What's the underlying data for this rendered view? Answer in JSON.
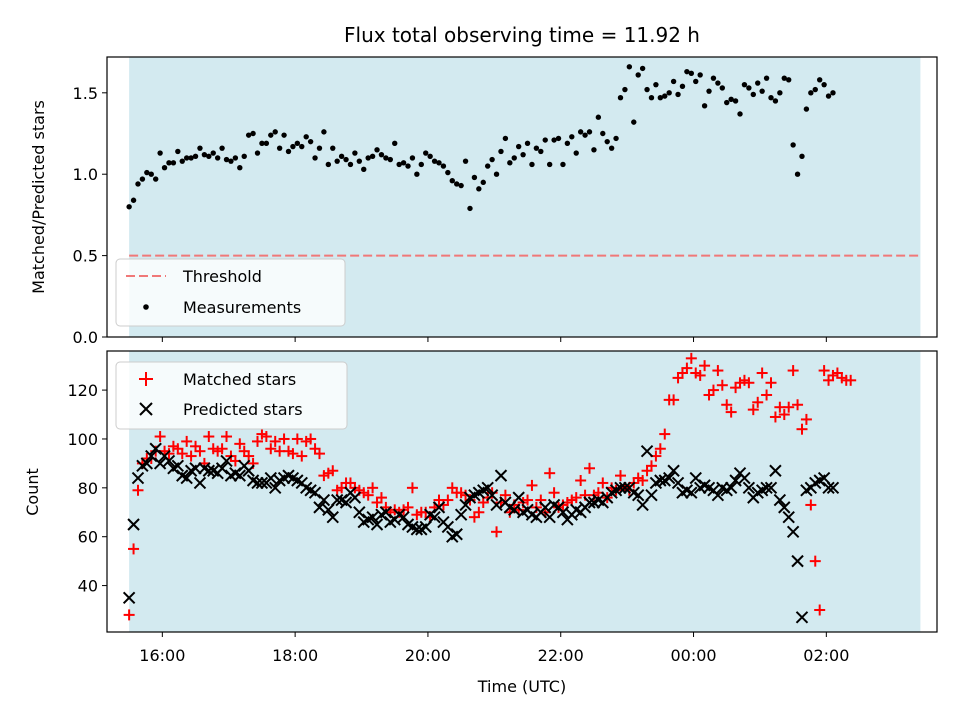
{
  "chart_data": [
    {
      "type": "scatter",
      "title": "Flux total observing time = 11.92 h",
      "xlabel": "",
      "ylabel": "Matched/Predicted stars",
      "ylim": [
        0,
        1.72
      ],
      "xlim": [
        "15:10",
        "03:40"
      ],
      "yticks": [
        0.0,
        0.5,
        1.0,
        1.5
      ],
      "ytick_labels": [
        "0.0",
        "0.5",
        "1.0",
        "1.5"
      ],
      "shaded_span": [
        "15:30",
        "03:25"
      ],
      "threshold": 0.5,
      "legend_position": "lower-left",
      "legend": [
        "Threshold",
        "Measurements"
      ],
      "colors": {
        "threshold": "#f07878",
        "measurements": "#000000",
        "shade": "#d3eaf0"
      },
      "x": [
        "15:30",
        "15:34",
        "15:38",
        "15:42",
        "15:46",
        "15:50",
        "15:54",
        "15:58",
        "16:02",
        "16:06",
        "16:10",
        "16:14",
        "16:18",
        "16:22",
        "16:26",
        "16:30",
        "16:34",
        "16:38",
        "16:42",
        "16:46",
        "16:50",
        "16:54",
        "16:58",
        "17:02",
        "17:06",
        "17:10",
        "17:14",
        "17:18",
        "17:22",
        "17:26",
        "17:30",
        "17:34",
        "17:38",
        "17:42",
        "17:46",
        "17:50",
        "17:54",
        "17:58",
        "18:02",
        "18:06",
        "18:10",
        "18:14",
        "18:18",
        "18:22",
        "18:26",
        "18:30",
        "18:34",
        "18:38",
        "18:42",
        "18:46",
        "18:50",
        "18:54",
        "18:58",
        "19:02",
        "19:06",
        "19:10",
        "19:14",
        "19:18",
        "19:22",
        "19:26",
        "19:30",
        "19:34",
        "19:38",
        "19:42",
        "19:46",
        "19:50",
        "19:54",
        "19:58",
        "20:02",
        "20:06",
        "20:10",
        "20:14",
        "20:18",
        "20:22",
        "20:26",
        "20:30",
        "20:34",
        "20:38",
        "20:42",
        "20:46",
        "20:50",
        "20:54",
        "20:58",
        "21:02",
        "21:06",
        "21:10",
        "21:14",
        "21:18",
        "21:22",
        "21:26",
        "21:30",
        "21:34",
        "21:38",
        "21:42",
        "21:46",
        "21:50",
        "21:54",
        "21:58",
        "22:02",
        "22:06",
        "22:10",
        "22:14",
        "22:18",
        "22:22",
        "22:26",
        "22:30",
        "22:34",
        "22:38",
        "22:42",
        "22:46",
        "22:50",
        "22:54",
        "22:58",
        "23:02",
        "23:06",
        "23:10",
        "23:14",
        "23:18",
        "23:22",
        "23:26",
        "23:30",
        "23:34",
        "23:38",
        "23:42",
        "23:46",
        "23:50",
        "23:54",
        "23:58",
        "00:02",
        "00:06",
        "00:10",
        "00:14",
        "00:18",
        "00:22",
        "00:26",
        "00:30",
        "00:34",
        "00:38",
        "00:42",
        "00:46",
        "00:50",
        "00:54",
        "00:58",
        "01:02",
        "01:06",
        "01:10",
        "01:14",
        "01:18",
        "01:22",
        "01:26",
        "01:30",
        "01:34",
        "01:38",
        "01:42",
        "01:46",
        "01:50",
        "01:54",
        "01:58",
        "02:02",
        "02:06",
        "02:10",
        "02:14",
        "02:18",
        "02:22",
        "02:26",
        "02:30",
        "02:34",
        "02:38",
        "02:42",
        "02:46",
        "02:50",
        "02:54",
        "02:58",
        "03:02",
        "03:06",
        "03:10",
        "03:14",
        "03:18",
        "03:22",
        "03:26"
      ],
      "series": [
        {
          "name": "Measurements",
          "values": [
            0.8,
            0.84,
            0.94,
            0.97,
            1.01,
            1.0,
            0.97,
            1.13,
            1.04,
            1.07,
            1.07,
            1.14,
            1.08,
            1.1,
            1.1,
            1.11,
            1.16,
            1.12,
            1.11,
            1.13,
            1.1,
            1.16,
            1.09,
            1.08,
            1.1,
            1.04,
            1.11,
            1.24,
            1.25,
            1.13,
            1.19,
            1.19,
            1.24,
            1.26,
            1.16,
            1.24,
            1.14,
            1.17,
            1.19,
            1.17,
            1.23,
            1.2,
            1.1,
            1.16,
            1.26,
            1.06,
            1.16,
            1.08,
            1.11,
            1.09,
            1.06,
            1.13,
            1.08,
            1.03,
            1.1,
            1.11,
            1.15,
            1.12,
            1.1,
            1.09,
            1.19,
            1.06,
            1.07,
            1.05,
            1.1,
            1.0,
            1.06,
            1.13,
            1.11,
            1.08,
            1.07,
            1.05,
            1.01,
            0.96,
            0.94,
            0.93,
            1.08,
            0.79,
            0.98,
            0.91,
            0.95,
            1.05,
            1.09,
            1.0,
            1.14,
            1.22,
            1.07,
            1.1,
            1.17,
            1.12,
            1.19,
            1.06,
            1.16,
            1.14,
            1.21,
            1.06,
            1.21,
            1.22,
            1.06,
            1.19,
            1.23,
            1.13,
            1.26,
            1.24,
            1.26,
            1.15,
            1.35,
            1.25,
            1.2,
            1.16,
            1.22,
            1.47,
            1.52,
            1.66,
            1.32,
            1.61,
            1.65,
            1.52,
            1.47,
            1.55,
            1.47,
            1.48,
            1.5,
            1.57,
            1.49,
            1.54,
            1.63,
            1.62,
            1.57,
            1.61,
            1.42,
            1.51,
            1.59,
            1.56,
            1.53,
            1.44,
            1.46,
            1.45,
            1.37,
            1.55,
            1.53,
            1.49,
            1.56,
            1.51,
            1.59,
            1.47,
            1.45,
            1.5,
            1.59,
            1.58,
            1.18,
            1.0,
            1.11,
            1.4,
            1.5,
            1.52,
            1.58,
            1.55,
            1.48,
            1.5
          ]
        }
      ]
    },
    {
      "type": "scatter",
      "title": "",
      "xlabel": "Time (UTC)",
      "ylabel": "Count",
      "ylim": [
        21,
        136
      ],
      "xlim": [
        "15:10",
        "03:40"
      ],
      "xticks": [
        "16:00",
        "18:00",
        "20:00",
        "22:00",
        "00:00",
        "02:00"
      ],
      "yticks": [
        40,
        60,
        80,
        100,
        120
      ],
      "ytick_labels": [
        "40",
        "60",
        "80",
        "100",
        "120"
      ],
      "shaded_span": [
        "15:30",
        "03:25"
      ],
      "legend_position": "upper-left",
      "legend": [
        "Matched stars",
        "Predicted stars"
      ],
      "colors": {
        "matched": "#ff0000",
        "predicted": "#000000",
        "shade": "#d3eaf0"
      },
      "x": [
        "15:30",
        "15:34",
        "15:38",
        "15:42",
        "15:46",
        "15:50",
        "15:54",
        "15:58",
        "16:02",
        "16:06",
        "16:10",
        "16:14",
        "16:18",
        "16:22",
        "16:26",
        "16:30",
        "16:34",
        "16:38",
        "16:42",
        "16:46",
        "16:50",
        "16:54",
        "16:58",
        "17:02",
        "17:06",
        "17:10",
        "17:14",
        "17:18",
        "17:22",
        "17:26",
        "17:30",
        "17:34",
        "17:38",
        "17:42",
        "17:46",
        "17:50",
        "17:54",
        "17:58",
        "18:02",
        "18:06",
        "18:10",
        "18:14",
        "18:18",
        "18:22",
        "18:26",
        "18:30",
        "18:34",
        "18:38",
        "18:42",
        "18:46",
        "18:50",
        "18:54",
        "18:58",
        "19:02",
        "19:06",
        "19:10",
        "19:14",
        "19:18",
        "19:22",
        "19:26",
        "19:30",
        "19:34",
        "19:38",
        "19:42",
        "19:46",
        "19:50",
        "19:54",
        "19:58",
        "20:02",
        "20:06",
        "20:10",
        "20:14",
        "20:18",
        "20:22",
        "20:26",
        "20:30",
        "20:34",
        "20:38",
        "20:42",
        "20:46",
        "20:50",
        "20:54",
        "20:58",
        "21:02",
        "21:06",
        "21:10",
        "21:14",
        "21:18",
        "21:22",
        "21:26",
        "21:30",
        "21:34",
        "21:38",
        "21:42",
        "21:46",
        "21:50",
        "21:54",
        "21:58",
        "22:02",
        "22:06",
        "22:10",
        "22:14",
        "22:18",
        "22:22",
        "22:26",
        "22:30",
        "22:34",
        "22:38",
        "22:42",
        "22:46",
        "22:50",
        "22:54",
        "22:58",
        "23:02",
        "23:06",
        "23:10",
        "23:14",
        "23:18",
        "23:22",
        "23:26",
        "23:30",
        "23:34",
        "23:38",
        "23:42",
        "23:46",
        "23:50",
        "23:54",
        "23:58",
        "00:02",
        "00:06",
        "00:10",
        "00:14",
        "00:18",
        "00:22",
        "00:26",
        "00:30",
        "00:34",
        "00:38",
        "00:42",
        "00:46",
        "00:50",
        "00:54",
        "00:58",
        "01:02",
        "01:06",
        "01:10",
        "01:14",
        "01:18",
        "01:22",
        "01:26",
        "01:30",
        "01:34",
        "01:38",
        "01:42",
        "01:46",
        "01:50",
        "01:54",
        "01:58",
        "02:02",
        "02:06",
        "02:10",
        "02:14",
        "02:18",
        "02:22",
        "02:26",
        "02:30",
        "02:34",
        "02:38",
        "02:42",
        "02:46",
        "02:50",
        "02:54",
        "02:58",
        "03:02",
        "03:06",
        "03:10",
        "03:14",
        "03:18",
        "03:22",
        "03:26"
      ],
      "series": [
        {
          "name": "Matched stars",
          "marker": "plus",
          "values": [
            28,
            55,
            79,
            90,
            92,
            92,
            95,
            101,
            95,
            94,
            97,
            96,
            94,
            99,
            93,
            97,
            95,
            90,
            101,
            96,
            95,
            96,
            101,
            93,
            91,
            98,
            95,
            93,
            90,
            99,
            102,
            101,
            96,
            99,
            95,
            100,
            95,
            94,
            100,
            93,
            99,
            100,
            96,
            94,
            85,
            86,
            87,
            79,
            80,
            82,
            82,
            80,
            79,
            78,
            77,
            80,
            74,
            76,
            72,
            70,
            71,
            70,
            71,
            72,
            80,
            69,
            70,
            70,
            68,
            72,
            75,
            73,
            75,
            80,
            78,
            78,
            77,
            75,
            68,
            70,
            74,
            76,
            78,
            62,
            74,
            77,
            70,
            73,
            71,
            74,
            75,
            81,
            72,
            75,
            70,
            86,
            78,
            72,
            73,
            74,
            75,
            76,
            83,
            77,
            88,
            77,
            78,
            82,
            76,
            80,
            79,
            85,
            80,
            79,
            82,
            84,
            83,
            87,
            89,
            93,
            96,
            102,
            116,
            116,
            125,
            127,
            129,
            133,
            127,
            126,
            130,
            118,
            120,
            128,
            122,
            114,
            111,
            121,
            123,
            124,
            123,
            112,
            115,
            127,
            118,
            123,
            109,
            113,
            110,
            113,
            128,
            114,
            104,
            108,
            73,
            50,
            30,
            128,
            124,
            126,
            127,
            125,
            124,
            124
          ]
        },
        {
          "name": "Predicted stars",
          "marker": "x",
          "values": [
            35,
            65,
            84,
            89,
            90,
            93,
            96,
            90,
            93,
            91,
            88,
            89,
            85,
            84,
            87,
            88,
            82,
            88,
            87,
            87,
            86,
            88,
            91,
            85,
            86,
            85,
            89,
            87,
            83,
            82,
            82,
            82,
            84,
            80,
            83,
            84,
            85,
            84,
            83,
            82,
            80,
            79,
            78,
            72,
            75,
            71,
            68,
            75,
            75,
            74,
            78,
            76,
            70,
            66,
            67,
            68,
            65,
            69,
            70,
            66,
            67,
            69,
            68,
            65,
            64,
            63,
            63,
            64,
            69,
            68,
            72,
            66,
            64,
            60,
            61,
            69,
            73,
            76,
            77,
            78,
            79,
            80,
            77,
            73,
            85,
            74,
            72,
            71,
            76,
            70,
            71,
            69,
            68,
            70,
            72,
            68,
            73,
            72,
            70,
            67,
            69,
            71,
            70,
            72,
            74,
            74,
            75,
            74,
            76,
            78,
            79,
            80,
            80,
            80,
            78,
            77,
            73,
            95,
            77,
            82,
            83,
            83,
            84,
            87,
            82,
            78,
            79,
            78,
            84,
            80,
            81,
            80,
            79,
            77,
            80,
            79,
            80,
            83,
            86,
            84,
            80,
            76,
            78,
            79,
            80,
            80,
            87,
            75,
            72,
            68,
            62,
            50,
            27,
            79,
            80,
            82,
            83,
            84,
            80,
            80
          ]
        }
      ]
    }
  ]
}
